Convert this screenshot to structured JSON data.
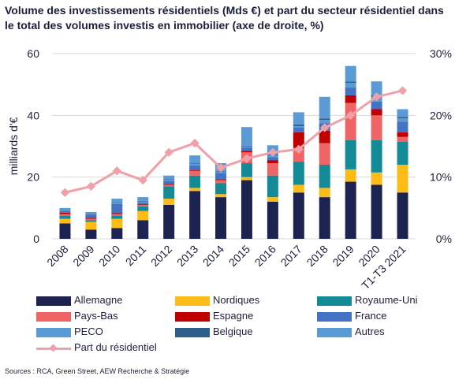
{
  "title": "Volume des investissements résidentiels (Mds €) et part du secteur résidentiel dans le total des volumes investis en immobilier (axe de droite, %)",
  "source": "Sources : RCA, Green Street, AEW Recherche & Stratégie",
  "chart_data": {
    "type": "bar",
    "stacked": true,
    "title": "Volume des investissements résidentiels (Mds €) et part du secteur résidentiel dans le total des volumes investis en immobilier (axe de droite, %)",
    "ylabel": "milliards d'€",
    "ylim": [
      0,
      60
    ],
    "yticks": [
      "0",
      "20",
      "40",
      "60"
    ],
    "y2lim": [
      0,
      30
    ],
    "y2ticks": [
      "0%",
      "10%",
      "20%",
      "30%"
    ],
    "grid": true,
    "legend_position": "bottom",
    "categories": [
      "2008",
      "2009",
      "2010",
      "2011",
      "2012",
      "2013",
      "2014",
      "2015",
      "2016",
      "2017",
      "2018",
      "2019",
      "2020",
      "T1-T3 2021"
    ],
    "series": [
      {
        "name": "Allemagne",
        "color": "#1c2350",
        "values": [
          5,
          3,
          3.5,
          6,
          11,
          15.5,
          13.5,
          19,
          12,
          15,
          13.5,
          18.5,
          17.5,
          15
        ]
      },
      {
        "name": "Nordiques",
        "color": "#fdbb16",
        "values": [
          1.5,
          2.5,
          3,
          3,
          2,
          1,
          1,
          1,
          1.5,
          2.5,
          3,
          4,
          4,
          9
        ]
      },
      {
        "name": "Royaume-Uni",
        "color": "#138b97",
        "values": [
          1,
          0.5,
          1,
          1.5,
          4,
          4,
          3.5,
          4.5,
          7,
          7.5,
          7.5,
          9.5,
          10.5,
          7.5
        ]
      },
      {
        "name": "Pays-Bas",
        "color": "#ef6464",
        "values": [
          0.5,
          0.5,
          0.5,
          0.5,
          0.5,
          1.5,
          1,
          3.5,
          4,
          4.5,
          7,
          12,
          8,
          1.5
        ]
      },
      {
        "name": "Espagne",
        "color": "#c00000",
        "values": [
          0.5,
          0.3,
          0.3,
          0.3,
          0.3,
          0.3,
          0.3,
          0.5,
          1,
          5,
          4,
          2.5,
          2,
          1.5
        ]
      },
      {
        "name": "France",
        "color": "#4472c4",
        "values": [
          0.5,
          1,
          3,
          0.5,
          1,
          1.5,
          2,
          1,
          1,
          1.5,
          2.5,
          2.5,
          2.5,
          3.5
        ]
      },
      {
        "name": "PECO",
        "color": "#5a9bd5",
        "values": [
          0.3,
          0.2,
          0.2,
          0.3,
          0.3,
          0.5,
          0.5,
          0.5,
          0.5,
          0.5,
          1,
          1.5,
          1.5,
          1
        ]
      },
      {
        "name": "Belgique",
        "color": "#2e5f8a",
        "values": [
          0.2,
          0.2,
          0.2,
          0.2,
          0.2,
          0.2,
          0.2,
          0.2,
          0.3,
          0.5,
          0.5,
          0.5,
          0.5,
          0.5
        ]
      },
      {
        "name": "Autres",
        "color": "#5b9bd5",
        "values": [
          0.5,
          0.5,
          1.3,
          1.2,
          1.2,
          2.5,
          2.5,
          6,
          3,
          4,
          7,
          5,
          4.5,
          2.5
        ]
      }
    ],
    "line_series": {
      "name": "Part du résidentiel",
      "color": "#f0a0a8",
      "axis": "right",
      "values": [
        7.5,
        8.5,
        11,
        9.5,
        14,
        15.5,
        11.5,
        13,
        14,
        14.5,
        18,
        20,
        23,
        24
      ]
    }
  }
}
